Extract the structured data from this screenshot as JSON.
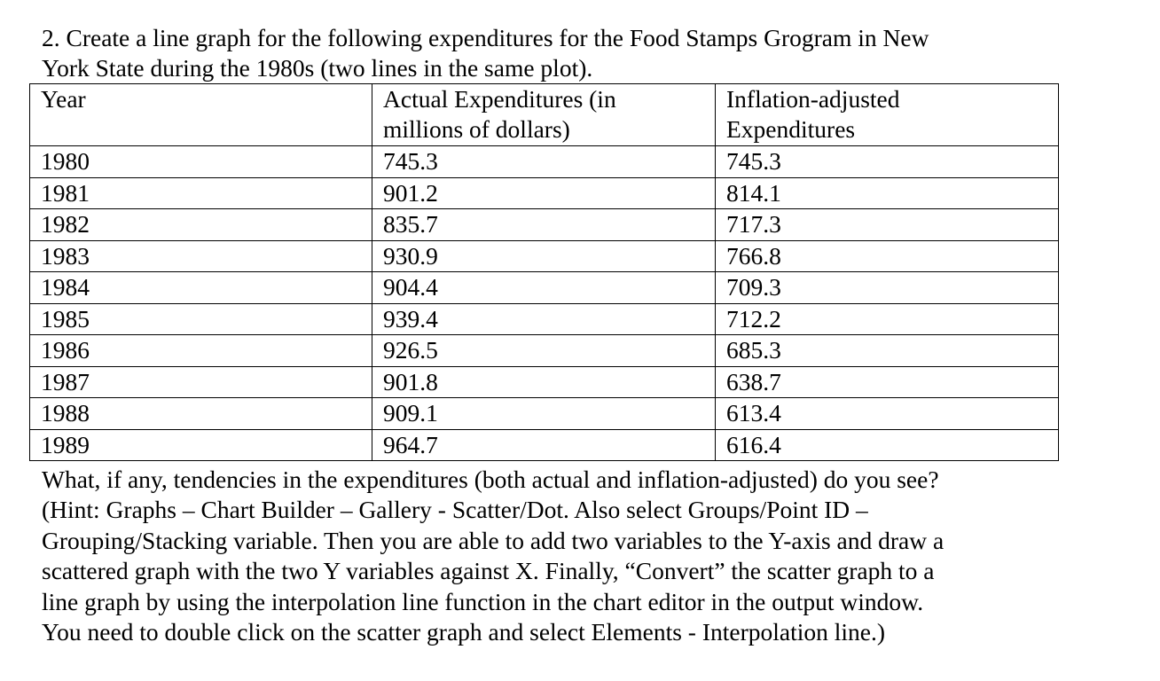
{
  "prompt": {
    "line1": "2. Create a line graph for the following expenditures for the Food Stamps Grogram in New",
    "line2": "York State during the 1980s (two lines in the same plot)."
  },
  "table": {
    "headers": {
      "year": "Year",
      "actual_line1": "Actual Expenditures (in",
      "actual_line2": "millions of dollars)",
      "adjusted_line1": "Inflation-adjusted",
      "adjusted_line2": "Expenditures"
    },
    "rows": [
      {
        "year": "1980",
        "actual": "745.3",
        "adjusted": "745.3"
      },
      {
        "year": "1981",
        "actual": "901.2",
        "adjusted": "814.1"
      },
      {
        "year": "1982",
        "actual": "835.7",
        "adjusted": "717.3"
      },
      {
        "year": "1983",
        "actual": "930.9",
        "adjusted": "766.8"
      },
      {
        "year": "1984",
        "actual": "904.4",
        "adjusted": "709.3"
      },
      {
        "year": "1985",
        "actual": "939.4",
        "adjusted": "712.2"
      },
      {
        "year": "1986",
        "actual": "926.5",
        "adjusted": "685.3"
      },
      {
        "year": "1987",
        "actual": "901.8",
        "adjusted": "638.7"
      },
      {
        "year": "1988",
        "actual": "909.1",
        "adjusted": "613.4"
      },
      {
        "year": "1989",
        "actual": "964.7",
        "adjusted": "616.4"
      }
    ]
  },
  "question": {
    "lines": [
      "What, if any, tendencies in the expenditures (both actual and inflation-adjusted) do you see?",
      "(Hint: Graphs – Chart Builder – Gallery - Scatter/Dot. Also select Groups/Point ID –",
      "Grouping/Stacking variable. Then you are able to add two variables to the Y-axis and draw a",
      "scattered graph with the two Y variables against X. Finally, “Convert” the scatter graph to a",
      "line graph by using the interpolation line function in the chart editor in the output window.",
      "You need to double click on the scatter graph and select Elements - Interpolation line.)"
    ]
  }
}
